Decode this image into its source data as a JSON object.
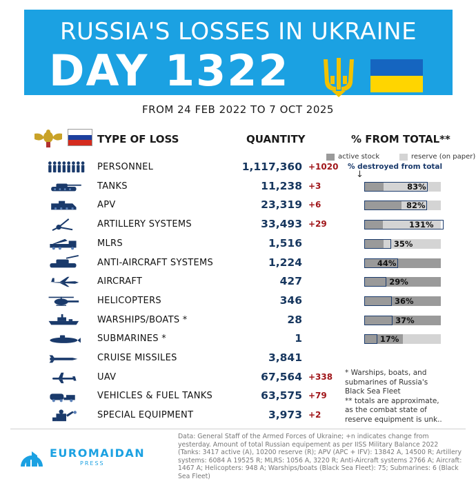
{
  "header": {
    "title": "RUSSIA'S LOSSES IN UKRAINE",
    "day": "DAY 1322",
    "period": "FROM 24 FEB 2022 TO 7 OCT 2025"
  },
  "columns": {
    "type": "TYPE OF LOSS",
    "quantity": "QUANTITY",
    "percent": "% FROM TOTAL**"
  },
  "legend": {
    "active": "active stock",
    "reserve": "reserve (on paper)",
    "destroyed": "% destroyed from total",
    "colors": {
      "active": "#9a9a9a",
      "reserve": "#d4d4d4",
      "destroyed_outline": "#1a3a6b"
    }
  },
  "rows": [
    {
      "icon": "soldiers-icon",
      "label": "PERSONNEL",
      "quantity": "1,117,360",
      "delta": "+1020",
      "pct": null
    },
    {
      "icon": "tank-icon",
      "label": "TANKS",
      "quantity": "11,238",
      "delta": "+3",
      "pct": "83%",
      "pct_value": 83,
      "active_share": 0.25
    },
    {
      "icon": "apv-icon",
      "label": "APV",
      "quantity": "23,319",
      "delta": "+6",
      "pct": "82%",
      "pct_value": 82,
      "active_share": 0.49
    },
    {
      "icon": "artillery-icon",
      "label": "ARTILLERY SYSTEMS",
      "quantity": "33,493",
      "delta": "+29",
      "pct": "131%",
      "pct_value": 131,
      "active_share": 0.24
    },
    {
      "icon": "mlrs-icon",
      "label": "MLRS",
      "quantity": "1,516",
      "delta": "",
      "pct": "35%",
      "pct_value": 35,
      "active_share": 0.25
    },
    {
      "icon": "anti-aircraft-icon",
      "label": "ANTI-AIRCRAFT SYSTEMS",
      "quantity": "1,224",
      "delta": "",
      "pct": "44%",
      "pct_value": 44,
      "active_share": 1.0
    },
    {
      "icon": "aircraft-icon",
      "label": "AIRCRAFT",
      "quantity": "427",
      "delta": "",
      "pct": "29%",
      "pct_value": 29,
      "active_share": 1.0
    },
    {
      "icon": "helicopter-icon",
      "label": "HELICOPTERS",
      "quantity": "346",
      "delta": "",
      "pct": "36%",
      "pct_value": 36,
      "active_share": 1.0
    },
    {
      "icon": "warship-icon",
      "label": "WARSHIPS/BOATS *",
      "quantity": "28",
      "delta": "",
      "pct": "37%",
      "pct_value": 37,
      "active_share": 1.0
    },
    {
      "icon": "submarine-icon",
      "label": "SUBMARINES *",
      "quantity": "1",
      "delta": "",
      "pct": "17%",
      "pct_value": 17,
      "active_share": 0.5
    },
    {
      "icon": "cruise-missile-icon",
      "label": "CRUISE MISSILES",
      "quantity": "3,841",
      "delta": "",
      "pct": null
    },
    {
      "icon": "uav-icon",
      "label": "UAV",
      "quantity": "67,564",
      "delta": "+338",
      "pct": null
    },
    {
      "icon": "fuel-truck-icon",
      "label": "VEHICLES & FUEL TANKS",
      "quantity": "63,575",
      "delta": "+79",
      "pct": null
    },
    {
      "icon": "special-equipment-icon",
      "label": "SPECIAL EQUIPMENT",
      "quantity": "3,973",
      "delta": "+2",
      "pct": null
    }
  ],
  "notes": {
    "line1": "* Warships, boats, and submarines of Russia's Black Sea Fleet",
    "line2": "** totals are approximate, as the combat state of reserve equipment is unk.."
  },
  "footer": {
    "brand": "EUROMAIDAN",
    "brand_sub": "PRESS",
    "source": "Data: General Staff of the Armed Forces of Ukraine; +n indicates change from yesterday. Amount of total Russian equipement as per IISS Military Balance 2022 (Tanks: 3417 active (A), 10200 reserve (R); APV (APC + IFV): 13842 A, 14500 R; Artillery systems: 6084 A 19525 R; MLRS: 1056 A, 3220 R; Anti-Aircraft systems 2766 A; Aircraft: 1467 A; Helicopters: 948 A; Warships/boats (Black Sea Fleet): 75; Submarines: 6 (Black Sea Fleet)"
  },
  "colors": {
    "header_bg": "#1ba1e2",
    "quantity": "#16365e",
    "delta": "#a0161a",
    "ua_blue": "#1565c0",
    "ua_yellow": "#ffd500",
    "trident": "#f2c200"
  }
}
